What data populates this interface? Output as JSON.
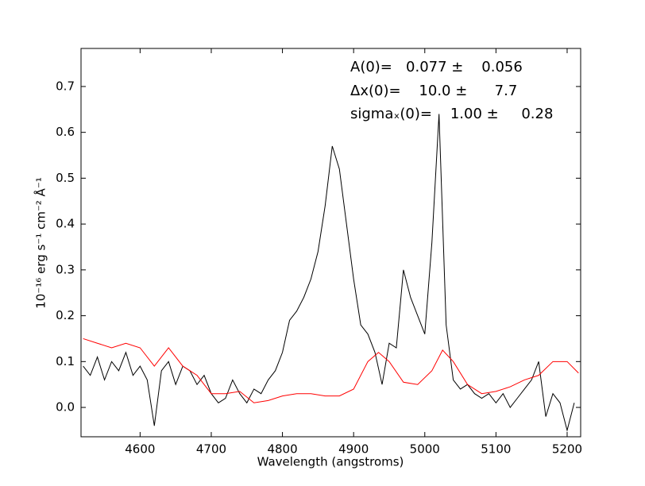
{
  "chart_data": {
    "type": "line",
    "xlabel": "Wavelength (angstroms)",
    "ylabel": "10⁻¹⁶ erg s⁻¹ cm⁻² Å⁻¹",
    "annotations": [
      "A(0)=   0.077 ±    0.056",
      "Δx(0)=    10.0 ±      7.7",
      "sigmaₓ(0)=    1.00 ±     0.28"
    ],
    "xlim": [
      4517,
      5219
    ],
    "ylim": [
      -0.064,
      0.783
    ],
    "xticks": [
      4600,
      4700,
      4800,
      4900,
      5000,
      5100,
      5200
    ],
    "yticks": [
      {
        "value": 0,
        "label": "0.0"
      },
      0.1,
      0.2,
      0.3,
      0.4,
      0.5,
      0.6,
      0.7
    ],
    "series": [
      {
        "color": "#000000",
        "x": [
          4520,
          4530,
          4540,
          4550,
          4560,
          4570,
          4580,
          4590,
          4600,
          4610,
          4620,
          4630,
          4640,
          4650,
          4660,
          4670,
          4680,
          4690,
          4700,
          4710,
          4720,
          4730,
          4740,
          4750,
          4760,
          4770,
          4780,
          4790,
          4800,
          4810,
          4820,
          4830,
          4840,
          4850,
          4860,
          4870,
          4880,
          4890,
          4900,
          4910,
          4920,
          4930,
          4940,
          4950,
          4960,
          4970,
          4980,
          4990,
          5000,
          5010,
          5020,
          5030,
          5040,
          5050,
          5060,
          5070,
          5080,
          5090,
          5100,
          5110,
          5120,
          5130,
          5140,
          5150,
          5160,
          5170,
          5180,
          5190,
          5200,
          5210
        ],
        "values": [
          0.09,
          0.07,
          0.11,
          0.06,
          0.1,
          0.08,
          0.12,
          0.07,
          0.09,
          0.06,
          -0.04,
          0.08,
          0.1,
          0.05,
          0.09,
          0.08,
          0.05,
          0.07,
          0.03,
          0.01,
          0.02,
          0.06,
          0.03,
          0.01,
          0.04,
          0.03,
          0.06,
          0.08,
          0.12,
          0.19,
          0.21,
          0.24,
          0.28,
          0.34,
          0.44,
          0.57,
          0.52,
          0.4,
          0.28,
          0.18,
          0.16,
          0.12,
          0.05,
          0.14,
          0.13,
          0.3,
          0.24,
          0.2,
          0.16,
          0.36,
          0.64,
          0.18,
          0.06,
          0.04,
          0.05,
          0.03,
          0.02,
          0.03,
          0.01,
          0.03,
          0.0,
          0.02,
          0.04,
          0.06,
          0.1,
          -0.02,
          0.03,
          0.01,
          -0.05,
          0.01
        ]
      },
      {
        "color": "#ff0000",
        "x": [
          4520,
          4540,
          4560,
          4580,
          4600,
          4620,
          4640,
          4660,
          4680,
          4700,
          4720,
          4740,
          4760,
          4780,
          4800,
          4820,
          4840,
          4860,
          4880,
          4900,
          4920,
          4935,
          4950,
          4970,
          4990,
          5010,
          5025,
          5040,
          5060,
          5080,
          5100,
          5120,
          5140,
          5160,
          5180,
          5200,
          5216
        ],
        "values": [
          0.15,
          0.14,
          0.13,
          0.14,
          0.13,
          0.09,
          0.13,
          0.09,
          0.07,
          0.03,
          0.03,
          0.035,
          0.01,
          0.015,
          0.025,
          0.03,
          0.03,
          0.025,
          0.025,
          0.04,
          0.1,
          0.12,
          0.1,
          0.055,
          0.05,
          0.08,
          0.125,
          0.1,
          0.05,
          0.03,
          0.035,
          0.045,
          0.06,
          0.07,
          0.1,
          0.1,
          0.075
        ]
      }
    ]
  }
}
